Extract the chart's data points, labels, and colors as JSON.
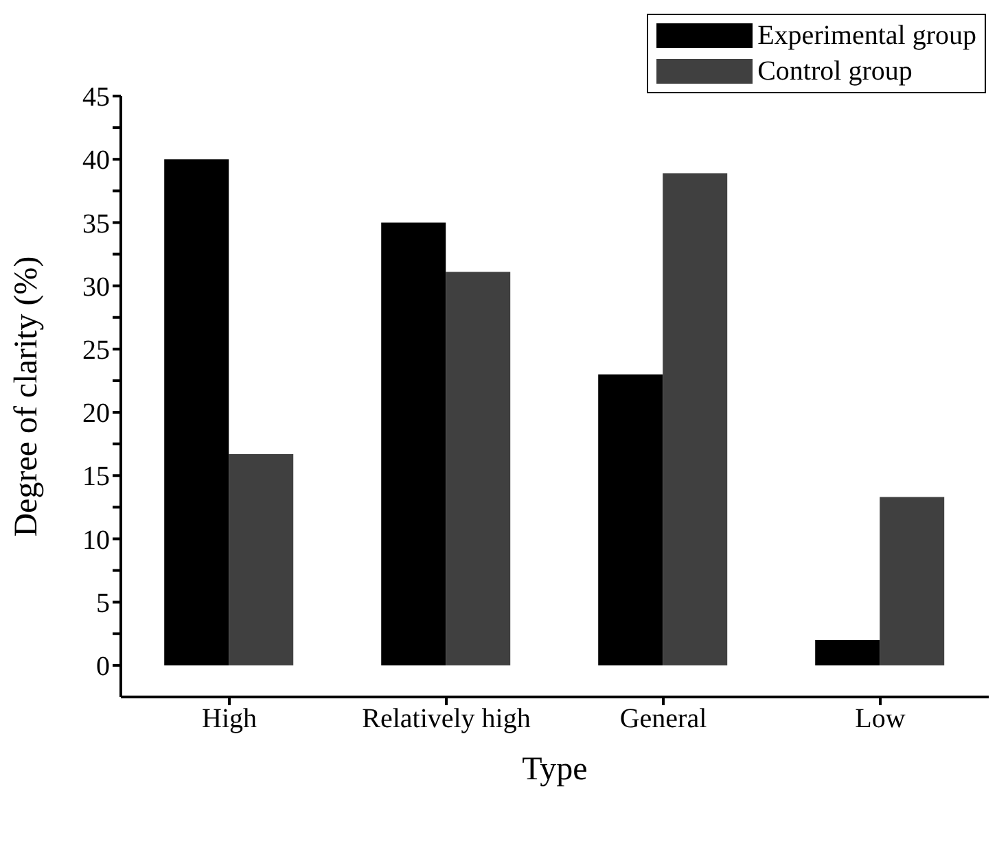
{
  "chart_data": {
    "type": "bar",
    "xlabel": "Type",
    "ylabel": "Degree of clarity (%)",
    "categories": [
      "High",
      "Relatively high",
      "General",
      "Low"
    ],
    "series": [
      {
        "name": "Experimental group",
        "color": "#000000",
        "values": [
          40,
          35,
          23,
          2
        ]
      },
      {
        "name": "Control group",
        "color": "#404040",
        "values": [
          16.7,
          31.1,
          38.9,
          13.3
        ]
      }
    ],
    "ylim": [
      -2.5,
      45
    ],
    "yticks": [
      0,
      {
        "value": 2.5,
        "label": null
      },
      5,
      {
        "value": 7.5,
        "label": null
      },
      10,
      {
        "value": 12.5,
        "label": null
      },
      15,
      {
        "value": 17.5,
        "label": null
      },
      20,
      {
        "value": 22.5,
        "label": null
      },
      25,
      {
        "value": 27.5,
        "label": null
      },
      30,
      {
        "value": 32.5,
        "label": null
      },
      35,
      {
        "value": 37.5,
        "label": null
      },
      40,
      {
        "value": 42.5,
        "label": null
      },
      45
    ],
    "grid": false,
    "legend": "top right"
  }
}
